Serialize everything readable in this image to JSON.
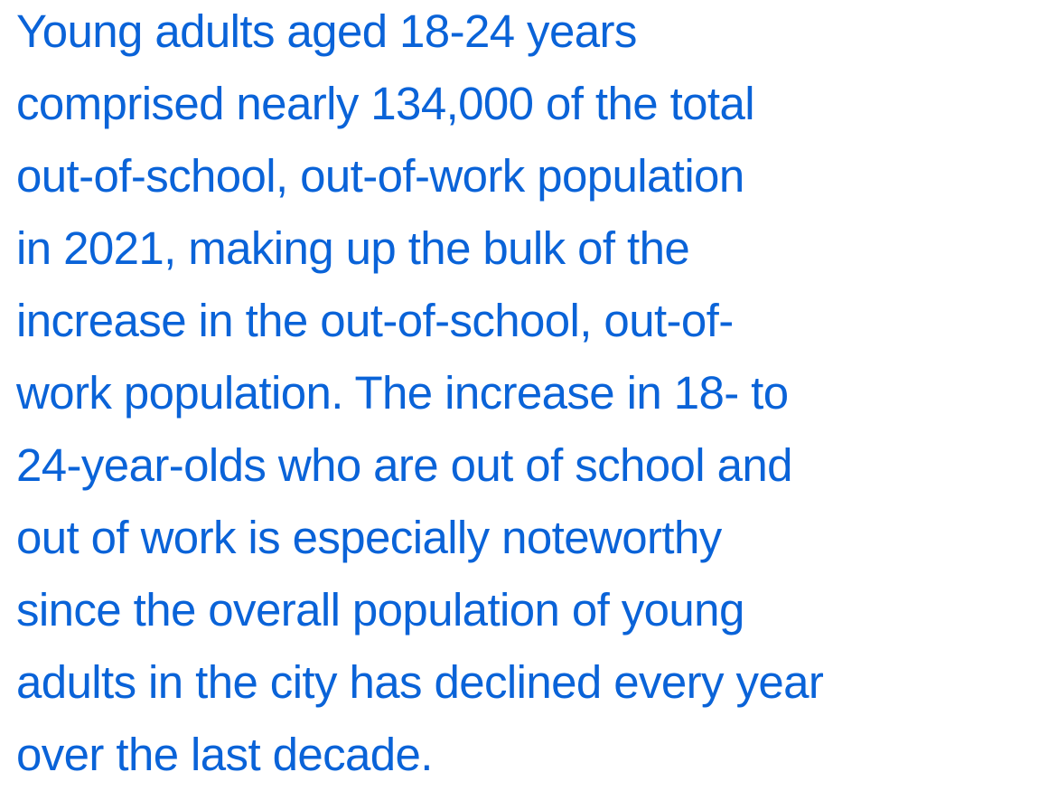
{
  "paragraph": {
    "lines": [
      "Young adults aged 18-24 years",
      "comprised nearly 134,000 of the total",
      "out-of-school, out-of-work population",
      "in 2021, making up the bulk of the",
      "increase in the out-of-school, out-of-",
      "work population. The increase in 18- to",
      "24-year-olds who are out of school and",
      "out of work is especially noteworthy",
      "since the overall population of young",
      "adults in the city has declined every year",
      "over the last decade."
    ]
  }
}
